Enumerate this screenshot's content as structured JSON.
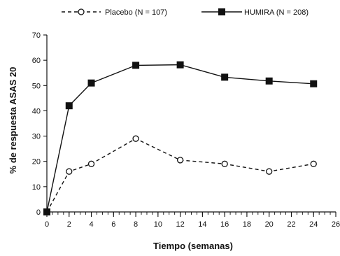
{
  "chart_data": {
    "type": "line",
    "title": "",
    "xlabel": "Tiempo (semanas)",
    "ylabel": "% de respuesta ASAS 20",
    "xlim": [
      0,
      26
    ],
    "ylim": [
      0,
      70
    ],
    "x_ticks": [
      "0",
      "2",
      "4",
      "6",
      "8",
      "10",
      "12",
      "14",
      "16",
      "18",
      "20",
      "22",
      "24",
      "26"
    ],
    "y_ticks": [
      "0",
      "10",
      "20",
      "30",
      "40",
      "50",
      "60",
      "70"
    ],
    "grid": false,
    "legend_position": "top",
    "series": [
      {
        "name": "Placebo (N = 107)",
        "style": "dashed",
        "marker": "open-circle",
        "color": "#111111",
        "x": [
          0,
          2,
          4,
          8,
          12,
          16,
          20,
          24
        ],
        "y": [
          0,
          16,
          19,
          29,
          20.5,
          19,
          16,
          19
        ]
      },
      {
        "name": "HUMIRA (N = 208)",
        "style": "solid",
        "marker": "filled-square",
        "color": "#111111",
        "x": [
          0,
          2,
          4,
          8,
          12,
          16,
          20,
          24
        ],
        "y": [
          0,
          42,
          51,
          58,
          58.2,
          53.3,
          51.8,
          50.7
        ]
      }
    ]
  }
}
